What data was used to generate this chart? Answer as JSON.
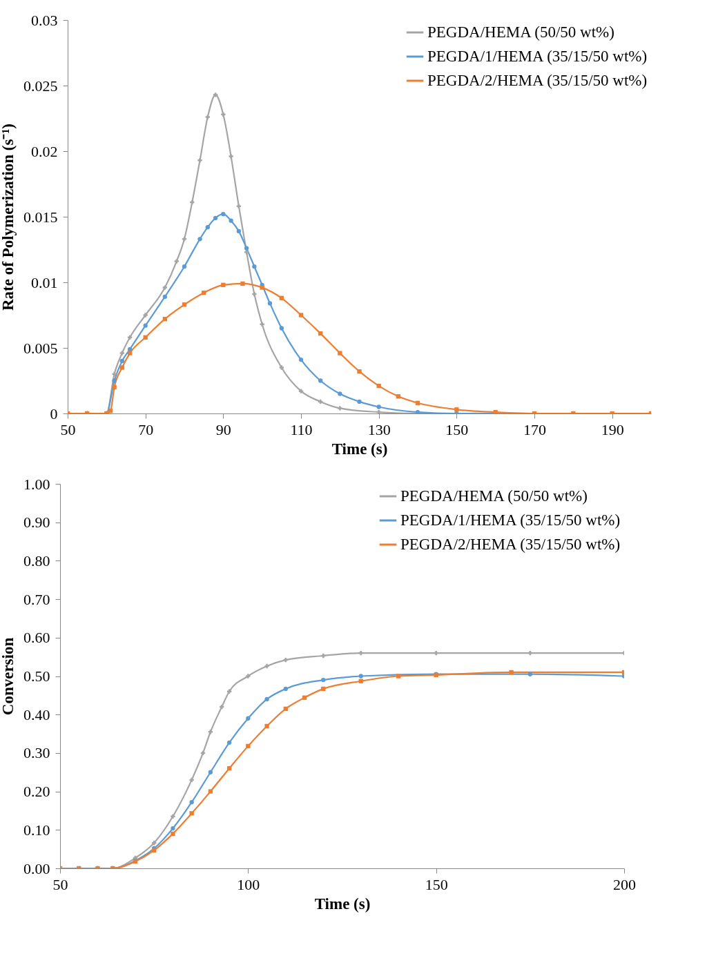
{
  "chart_data": [
    {
      "type": "line",
      "xlabel": "Time (s)",
      "ylabel": "Rate of Polymerization  (s⁻¹)",
      "xlim": [
        50,
        200
      ],
      "xticks": [
        50,
        70,
        90,
        110,
        130,
        150,
        170,
        190
      ],
      "ylim": [
        0,
        0.03
      ],
      "yticks": [
        0,
        0.005,
        0.01,
        0.015,
        0.02,
        0.025,
        0.03
      ],
      "grid": false,
      "legend": "top right",
      "line_style": "solid",
      "series": [
        {
          "name": "PEGDA/HEMA (50/50 wt%)",
          "color": "#a5a5a5",
          "marker": "cross",
          "x": [
            50,
            55,
            60,
            62,
            64,
            66,
            70,
            75,
            78,
            80,
            82,
            84,
            86,
            88,
            90,
            92,
            94,
            96,
            98,
            100,
            105,
            110,
            115,
            120,
            130,
            140,
            160,
            180,
            200
          ],
          "values": [
            0,
            0,
            0,
            0.003,
            0.0046,
            0.0058,
            0.0075,
            0.0096,
            0.0116,
            0.0133,
            0.0161,
            0.0193,
            0.0226,
            0.0243,
            0.0228,
            0.0196,
            0.0158,
            0.0123,
            0.0091,
            0.0068,
            0.0035,
            0.0017,
            0.0009,
            0.0004,
            0.0001,
            0,
            0,
            0,
            0
          ]
        },
        {
          "name": "PEGDA/1/HEMA (35/15/50 wt%)",
          "color": "#5b9bd5",
          "marker": "circle",
          "x": [
            50,
            55,
            60,
            62,
            64,
            66,
            70,
            75,
            80,
            84,
            86,
            88,
            90,
            92,
            94,
            96,
            98,
            100,
            102,
            105,
            110,
            115,
            120,
            125,
            130,
            140,
            150,
            160
          ],
          "values": [
            0,
            0,
            0,
            0.0025,
            0.004,
            0.0049,
            0.0067,
            0.0089,
            0.0112,
            0.0133,
            0.0142,
            0.0149,
            0.0152,
            0.0147,
            0.0139,
            0.0126,
            0.0112,
            0.0098,
            0.0084,
            0.0065,
            0.0041,
            0.0025,
            0.0015,
            0.0009,
            0.0005,
            0.0001,
            0,
            0
          ]
        },
        {
          "name": "PEGDA/2/HEMA (35/15/50 wt%)",
          "color": "#ed7d31",
          "marker": "square",
          "x": [
            50,
            55,
            60,
            61,
            62,
            64,
            66,
            70,
            75,
            80,
            85,
            90,
            95,
            100,
            105,
            110,
            115,
            120,
            125,
            130,
            135,
            140,
            150,
            160,
            170,
            180,
            190,
            200
          ],
          "values": [
            0,
            0,
            0,
            0.0002,
            0.002,
            0.0035,
            0.0046,
            0.0058,
            0.0072,
            0.0083,
            0.0092,
            0.0098,
            0.0099,
            0.0096,
            0.0088,
            0.0075,
            0.0061,
            0.0046,
            0.0032,
            0.0021,
            0.0013,
            0.0008,
            0.0003,
            0.0001,
            0,
            0,
            0,
            0
          ]
        }
      ]
    },
    {
      "type": "line",
      "xlabel": "Time (s)",
      "ylabel": "Conversion",
      "xlim": [
        50,
        200
      ],
      "xticks": [
        50,
        100,
        150,
        200
      ],
      "ylim": [
        0,
        1
      ],
      "yticks": [
        {
          "value": 0,
          "label": "0.00"
        },
        {
          "value": 0.1,
          "label": "0.10"
        },
        {
          "value": 0.2,
          "label": "0.20"
        },
        {
          "value": 0.3,
          "label": "0.30"
        },
        {
          "value": 0.4,
          "label": "0.40"
        },
        {
          "value": 0.5,
          "label": "0.50"
        },
        {
          "value": 0.6,
          "label": "0.60"
        },
        {
          "value": 0.7,
          "label": "0.70"
        },
        {
          "value": 0.8,
          "label": "0.80"
        },
        {
          "value": 0.9,
          "label": "0.90"
        },
        {
          "value": 1,
          "label": "1.00"
        }
      ],
      "grid": false,
      "legend": "top right",
      "line_style": "solid",
      "series": [
        {
          "name": "PEGDA/HEMA (50/50 wt%)",
          "color": "#a5a5a5",
          "marker": "cross",
          "x": [
            50,
            55,
            60,
            64,
            70,
            75,
            80,
            85,
            88,
            90,
            93,
            95,
            100,
            105,
            110,
            120,
            130,
            150,
            175,
            200
          ],
          "values": [
            0,
            0,
            0,
            0,
            0.027,
            0.066,
            0.135,
            0.23,
            0.3,
            0.355,
            0.42,
            0.46,
            0.5,
            0.526,
            0.542,
            0.553,
            0.56,
            0.56,
            0.56,
            0.56
          ]
        },
        {
          "name": "PEGDA/1/HEMA (35/15/50 wt%)",
          "color": "#5b9bd5",
          "marker": "circle",
          "x": [
            60,
            64,
            70,
            75,
            80,
            85,
            90,
            95,
            100,
            105,
            110,
            120,
            130,
            150,
            175,
            200
          ],
          "values": [
            0,
            0,
            0.02,
            0.052,
            0.104,
            0.172,
            0.25,
            0.327,
            0.39,
            0.44,
            0.467,
            0.49,
            0.5,
            0.505,
            0.505,
            0.5
          ]
        },
        {
          "name": "PEGDA/2/HEMA (35/15/50 wt%)",
          "color": "#ed7d31",
          "marker": "square",
          "x": [
            50,
            55,
            60,
            64,
            70,
            75,
            80,
            85,
            90,
            95,
            100,
            105,
            110,
            115,
            120,
            130,
            140,
            150,
            170,
            200
          ],
          "values": [
            0,
            0,
            0,
            0,
            0.018,
            0.047,
            0.09,
            0.143,
            0.2,
            0.26,
            0.318,
            0.37,
            0.415,
            0.444,
            0.467,
            0.487,
            0.5,
            0.503,
            0.51,
            0.51
          ]
        }
      ]
    }
  ]
}
